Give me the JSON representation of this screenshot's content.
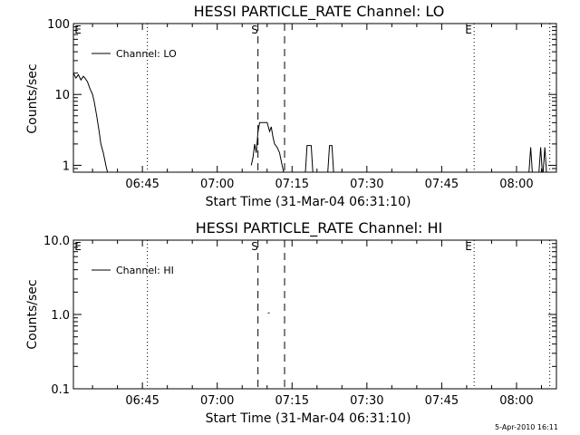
{
  "figure": {
    "background": "#ffffff",
    "ink": "#000000",
    "date_stamp": "5-Apr-2010 16:11"
  },
  "chart_data": [
    {
      "type": "line",
      "title": "HESSI PARTICLE_RATE Channel: LO",
      "xlabel": "Start Time (31-Mar-04 06:31:10)",
      "ylabel": "Counts/sec",
      "yscale": "log",
      "ylim": [
        0.8,
        100
      ],
      "xlim": [
        "06:31:10",
        "08:08:00"
      ],
      "xticks": [
        "06:45",
        "07:00",
        "07:15",
        "07:30",
        "07:45",
        "08:00"
      ],
      "yticks": [
        "1",
        "10",
        "100"
      ],
      "grid": false,
      "legend": {
        "placement": "top-left",
        "entries": [
          "Channel: LO"
        ]
      },
      "markers": [
        {
          "label": "E",
          "time": "06:31:10",
          "style": "none"
        },
        {
          "time": "06:46:00",
          "style": "dotted"
        },
        {
          "label": "S",
          "time": "07:08:10",
          "style": "dashed"
        },
        {
          "time": "07:13:30",
          "style": "dashed"
        },
        {
          "label": "E",
          "time": "07:51:30",
          "style": "dotted"
        },
        {
          "time": "08:06:40",
          "style": "dotted"
        }
      ],
      "series": [
        {
          "segments": [
            {
              "x": [
                "06:31:10",
                "06:31:40",
                "06:32:10",
                "06:32:40",
                "06:33:10",
                "06:33:30",
                "06:34:00",
                "06:34:30",
                "06:35:00",
                "06:35:20",
                "06:35:50",
                "06:36:20",
                "06:36:40",
                "06:37:10",
                "06:37:40",
                "06:38:00"
              ],
              "y": [
                20,
                17,
                19,
                16,
                18,
                17,
                15,
                12,
                10,
                8,
                5,
                3,
                2,
                1.5,
                1,
                0.8
              ]
            },
            {
              "x": [
                "07:06:50",
                "07:07:10",
                "07:07:30",
                "07:07:50",
                "07:08:10",
                "07:08:30",
                "07:09:00",
                "07:09:30",
                "07:10:00",
                "07:10:30",
                "07:10:50",
                "07:11:10",
                "07:11:30",
                "07:12:00",
                "07:12:30",
                "07:13:00",
                "07:13:20"
              ],
              "y": [
                1,
                1.3,
                2,
                1.5,
                3,
                4,
                4,
                4,
                4,
                3,
                3.5,
                2.5,
                2,
                1.8,
                1.5,
                1,
                0.8
              ]
            },
            {
              "x": [
                "07:17:40",
                "07:18:00",
                "07:18:50",
                "07:19:10"
              ],
              "y": [
                0.8,
                1.9,
                1.9,
                0.8
              ]
            },
            {
              "x": [
                "07:22:10",
                "07:22:30",
                "07:23:00",
                "07:23:20"
              ],
              "y": [
                0.8,
                1.9,
                1.9,
                0.8
              ]
            },
            {
              "x": [
                "08:02:30",
                "08:02:50",
                "08:03:10"
              ],
              "y": [
                0.8,
                1.8,
                0.8
              ]
            },
            {
              "x": [
                "08:04:30",
                "08:04:50",
                "08:05:10"
              ],
              "y": [
                0.8,
                1.8,
                0.8
              ]
            },
            {
              "x": [
                "08:05:20",
                "08:05:40",
                "08:06:00"
              ],
              "y": [
                0.8,
                1.8,
                0.8
              ]
            }
          ]
        }
      ]
    },
    {
      "type": "line",
      "title": "HESSI PARTICLE_RATE Channel: HI",
      "xlabel": "Start Time (31-Mar-04 06:31:10)",
      "ylabel": "Counts/sec",
      "yscale": "log",
      "ylim": [
        0.1,
        10
      ],
      "xlim": [
        "06:31:10",
        "08:08:00"
      ],
      "xticks": [
        "06:45",
        "07:00",
        "07:15",
        "07:30",
        "07:45",
        "08:00"
      ],
      "yticks": [
        "0.1",
        "1.0",
        "10.0"
      ],
      "grid": false,
      "legend": {
        "placement": "top-left",
        "entries": [
          "Channel: HI"
        ]
      },
      "markers": [
        {
          "label": "E",
          "time": "06:31:10",
          "style": "none"
        },
        {
          "time": "06:46:00",
          "style": "dotted"
        },
        {
          "label": "S",
          "time": "07:08:10",
          "style": "dashed"
        },
        {
          "time": "07:13:30",
          "style": "dashed"
        },
        {
          "label": "E",
          "time": "07:51:30",
          "style": "dotted"
        },
        {
          "time": "08:06:40",
          "style": "dotted"
        }
      ],
      "series": [
        {
          "segments": [
            {
              "x": [
                "07:10:10",
                "07:10:30"
              ],
              "y": [
                1.05,
                1.05
              ]
            }
          ]
        }
      ]
    }
  ]
}
